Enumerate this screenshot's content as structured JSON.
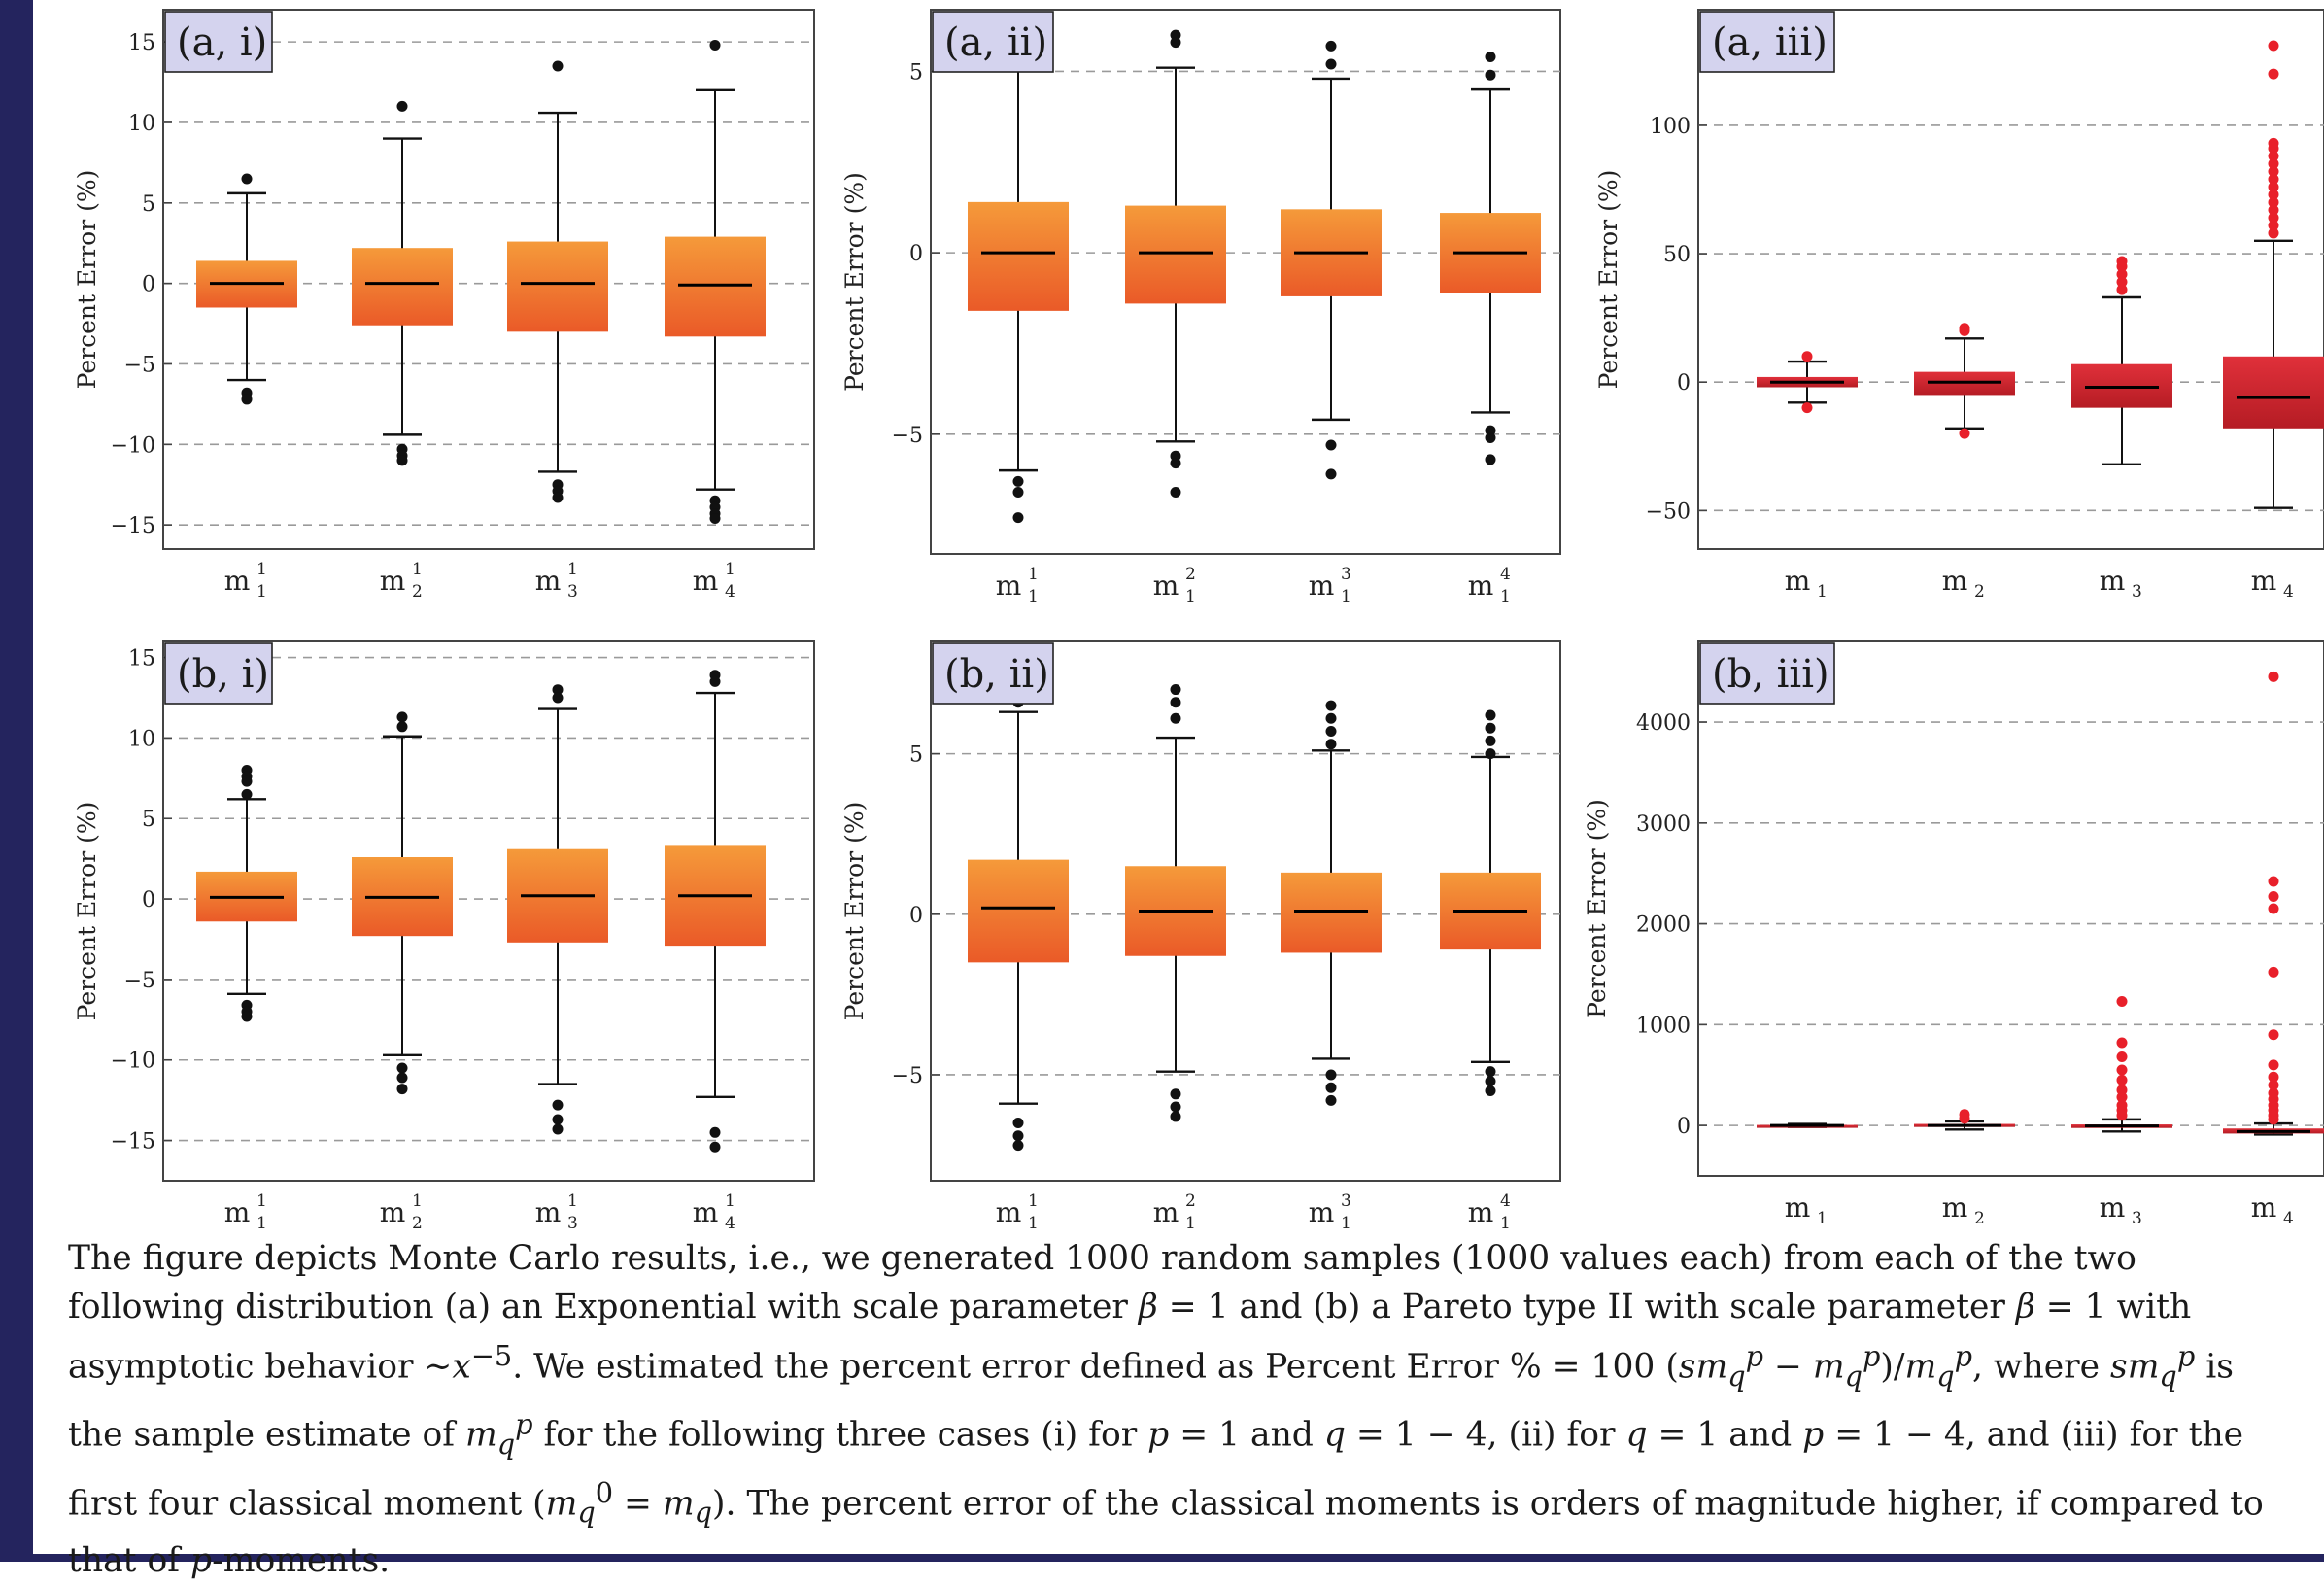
{
  "chart_data": [
    {
      "panel_label": "(a, i)",
      "type": "box",
      "ylabel": "Percent Error (%)",
      "ylim": [
        -16.5,
        17
      ],
      "yticks": [
        15,
        10,
        5,
        0,
        -5,
        -10,
        -15
      ],
      "grid": "dashed horizontal",
      "box_color": "orange",
      "categories": [
        {
          "base": "m",
          "sup": "1",
          "sub": "1"
        },
        {
          "base": "m",
          "sup": "1",
          "sub": "2"
        },
        {
          "base": "m",
          "sup": "1",
          "sub": "3"
        },
        {
          "base": "m",
          "sup": "1",
          "sub": "4"
        }
      ],
      "boxes": [
        {
          "median": 0,
          "q1": -1.5,
          "q3": 1.4,
          "whisker_low": -6.0,
          "whisker_high": 5.6,
          "outliers": [
            6.5,
            -6.8,
            -7.2
          ]
        },
        {
          "median": 0,
          "q1": -2.6,
          "q3": 2.2,
          "whisker_low": -9.4,
          "whisker_high": 9.0,
          "outliers": [
            11.0,
            -10.3,
            -10.7,
            -11.0
          ]
        },
        {
          "median": 0,
          "q1": -3.0,
          "q3": 2.6,
          "whisker_low": -11.7,
          "whisker_high": 10.6,
          "outliers": [
            13.5,
            -12.5,
            -12.9,
            -13.3
          ]
        },
        {
          "median": -0.1,
          "q1": -3.3,
          "q3": 2.9,
          "whisker_low": -12.8,
          "whisker_high": 12.0,
          "outliers": [
            14.8,
            -13.5,
            -13.9,
            -14.3,
            -14.6
          ]
        }
      ]
    },
    {
      "panel_label": "(a, ii)",
      "type": "box",
      "ylabel": "Percent Error (%)",
      "ylim": [
        -8.3,
        6.7
      ],
      "yticks": [
        5,
        0,
        -5
      ],
      "grid": "dashed horizontal",
      "box_color": "orange",
      "categories": [
        {
          "base": "m",
          "sup": "1",
          "sub": "1"
        },
        {
          "base": "m",
          "sup": "2",
          "sub": "1"
        },
        {
          "base": "m",
          "sup": "3",
          "sub": "1"
        },
        {
          "base": "m",
          "sup": "4",
          "sub": "1"
        }
      ],
      "boxes": [
        {
          "median": 0,
          "q1": -1.6,
          "q3": 1.4,
          "whisker_low": -6.0,
          "whisker_high": 5.6,
          "outliers": [
            -6.3,
            -6.6,
            -7.3
          ]
        },
        {
          "median": 0,
          "q1": -1.4,
          "q3": 1.3,
          "whisker_low": -5.2,
          "whisker_high": 5.1,
          "outliers": [
            6.0,
            5.8,
            -5.6,
            -5.8,
            -6.6
          ]
        },
        {
          "median": 0,
          "q1": -1.2,
          "q3": 1.2,
          "whisker_low": -4.6,
          "whisker_high": 4.8,
          "outliers": [
            5.7,
            5.2,
            -5.3,
            -6.1
          ]
        },
        {
          "median": 0,
          "q1": -1.1,
          "q3": 1.1,
          "whisker_low": -4.4,
          "whisker_high": 4.5,
          "outliers": [
            5.4,
            4.9,
            -4.9,
            -5.1,
            -5.7
          ]
        }
      ]
    },
    {
      "panel_label": "(a, iii)",
      "type": "box",
      "ylabel": "Percent Error (%)",
      "ylim": [
        -65,
        145
      ],
      "yticks": [
        100,
        50,
        0,
        -50
      ],
      "grid": "dashed horizontal",
      "box_color": "red",
      "categories": [
        {
          "base": "m",
          "sup": "",
          "sub": "1"
        },
        {
          "base": "m",
          "sup": "",
          "sub": "2"
        },
        {
          "base": "m",
          "sup": "",
          "sub": "3"
        },
        {
          "base": "m",
          "sup": "",
          "sub": "4"
        }
      ],
      "boxes": [
        {
          "median": 0,
          "q1": -2,
          "q3": 2,
          "whisker_low": -8,
          "whisker_high": 8,
          "outliers": [
            10,
            -10
          ]
        },
        {
          "median": 0,
          "q1": -5,
          "q3": 4,
          "whisker_low": -18,
          "whisker_high": 17,
          "outliers": [
            20,
            21,
            -20
          ]
        },
        {
          "median": -2,
          "q1": -10,
          "q3": 7,
          "whisker_low": -32,
          "whisker_high": 33,
          "outliers": [
            36,
            39,
            42,
            45,
            47
          ]
        },
        {
          "median": -6,
          "q1": -18,
          "q3": 10,
          "whisker_low": -49,
          "whisker_high": 55,
          "outliers": [
            58,
            61,
            64,
            67,
            70,
            73,
            76,
            79,
            82,
            85,
            88,
            91,
            93,
            120,
            131
          ]
        }
      ]
    },
    {
      "panel_label": "(b, i)",
      "type": "box",
      "ylabel": "Percent Error (%)",
      "ylim": [
        -17.5,
        16
      ],
      "yticks": [
        15,
        10,
        5,
        0,
        -5,
        -10,
        -15
      ],
      "grid": "dashed horizontal",
      "box_color": "orange",
      "categories": [
        {
          "base": "m",
          "sup": "1",
          "sub": "1"
        },
        {
          "base": "m",
          "sup": "1",
          "sub": "2"
        },
        {
          "base": "m",
          "sup": "1",
          "sub": "3"
        },
        {
          "base": "m",
          "sup": "1",
          "sub": "4"
        }
      ],
      "boxes": [
        {
          "median": 0.1,
          "q1": -1.4,
          "q3": 1.7,
          "whisker_low": -5.9,
          "whisker_high": 6.2,
          "outliers": [
            8.0,
            7.6,
            7.3,
            6.5,
            -6.6,
            -7.0,
            -7.3
          ]
        },
        {
          "median": 0.1,
          "q1": -2.3,
          "q3": 2.6,
          "whisker_low": -9.7,
          "whisker_high": 10.1,
          "outliers": [
            11.3,
            10.7,
            -10.5,
            -11.1,
            -11.8
          ]
        },
        {
          "median": 0.2,
          "q1": -2.7,
          "q3": 3.1,
          "whisker_low": -11.5,
          "whisker_high": 11.8,
          "outliers": [
            13.0,
            12.5,
            -12.8,
            -13.7,
            -14.3
          ]
        },
        {
          "median": 0.2,
          "q1": -2.9,
          "q3": 3.3,
          "whisker_low": -12.3,
          "whisker_high": 12.8,
          "outliers": [
            13.9,
            13.5,
            -14.5,
            -15.4
          ]
        }
      ]
    },
    {
      "panel_label": "(b, ii)",
      "type": "box",
      "ylabel": "Percent Error (%)",
      "ylim": [
        -8.3,
        8.5
      ],
      "yticks": [
        5,
        0,
        -5
      ],
      "grid": "dashed horizontal",
      "box_color": "orange",
      "categories": [
        {
          "base": "m",
          "sup": "1",
          "sub": "1"
        },
        {
          "base": "m",
          "sup": "2",
          "sub": "1"
        },
        {
          "base": "m",
          "sup": "3",
          "sub": "1"
        },
        {
          "base": "m",
          "sup": "4",
          "sub": "1"
        }
      ],
      "boxes": [
        {
          "median": 0.2,
          "q1": -1.5,
          "q3": 1.7,
          "whisker_low": -5.9,
          "whisker_high": 6.3,
          "outliers": [
            6.6,
            -6.5,
            -6.9,
            -7.2
          ]
        },
        {
          "median": 0.1,
          "q1": -1.3,
          "q3": 1.5,
          "whisker_low": -4.9,
          "whisker_high": 5.5,
          "outliers": [
            7.0,
            6.6,
            6.1,
            -5.6,
            -6.0,
            -6.3
          ]
        },
        {
          "median": 0.1,
          "q1": -1.2,
          "q3": 1.3,
          "whisker_low": -4.5,
          "whisker_high": 5.1,
          "outliers": [
            6.5,
            6.1,
            5.7,
            5.3,
            -5.0,
            -5.4,
            -5.8
          ]
        },
        {
          "median": 0.1,
          "q1": -1.1,
          "q3": 1.3,
          "whisker_low": -4.6,
          "whisker_high": 4.9,
          "outliers": [
            6.2,
            5.8,
            5.4,
            5.0,
            -4.9,
            -5.2,
            -5.5
          ]
        }
      ]
    },
    {
      "panel_label": "(b, iii)",
      "type": "box",
      "ylabel": "Percent Error (%)",
      "ylim": [
        -500,
        4800
      ],
      "yticks": [
        4000,
        3000,
        2000,
        1000,
        0
      ],
      "grid": "dashed horizontal",
      "box_color": "red",
      "categories": [
        {
          "base": "m",
          "sup": "",
          "sub": "1"
        },
        {
          "base": "m",
          "sup": "",
          "sub": "2"
        },
        {
          "base": "m",
          "sup": "",
          "sub": "3"
        },
        {
          "base": "m",
          "sup": "",
          "sub": "4"
        }
      ],
      "boxes": [
        {
          "median": 0,
          "q1": -5,
          "q3": 5,
          "whisker_low": -15,
          "whisker_high": 15,
          "outliers": []
        },
        {
          "median": 0,
          "q1": -15,
          "q3": 15,
          "whisker_low": -40,
          "whisker_high": 40,
          "outliers": [
            70,
            110
          ]
        },
        {
          "median": -5,
          "q1": -25,
          "q3": 10,
          "whisker_low": -60,
          "whisker_high": 60,
          "outliers": [
            100,
            150,
            200,
            280,
            350,
            450,
            550,
            680,
            820,
            1230
          ]
        },
        {
          "median": -60,
          "q1": -80,
          "q3": -30,
          "whisker_low": -90,
          "whisker_high": 20,
          "outliers": [
            60,
            100,
            150,
            200,
            260,
            320,
            400,
            480,
            600,
            900,
            1520,
            2150,
            2270,
            2420,
            4450
          ]
        }
      ]
    }
  ],
  "caption": {
    "line1": "The figure depicts Monte Carlo results, i.e., we generated 1000 random samples (1000 values each) from each of the two",
    "line2a": "following distribution (a) an Exponential with scale parameter ",
    "beta": "β",
    "eq1": " = 1",
    "line2b": " and (b) a Pareto type II with scale parameter ",
    "line2c": " with",
    "line3a": "asymptotic behavior ~",
    "x": "x",
    "exp": "−5",
    "line3b": ".  We estimated the percent error defined as Percent Error % = 100 (",
    "sm": "sm",
    "m": "m",
    "p": "p",
    "q": "q",
    "minus": " − ",
    "line3c": ")/",
    "line3d": ", where ",
    "line3e": " is",
    "line4a": "the sample estimate of  ",
    "line4b": " for the following three cases (i) for ",
    "p_eq": "p",
    "line4c": " = 1 and ",
    "q_eq": "q",
    "line4d": " = 1 − 4, (ii) for ",
    "line4e": " = 1 and ",
    "line4f": " = 1 − 4, and (iii) for  the",
    "line5a": "first four classical moment (",
    "zero": "0",
    "line5b": " = ",
    "line5c": "). The percent error of the classical moments is orders of magnitude higher, if compared to",
    "line6a": "that of ",
    "line6b": "-moments."
  },
  "colors": {
    "frame": "#24245e",
    "orange_top": "#f59a3a",
    "orange_bottom": "#ea5a28",
    "red_top": "#e0303a",
    "red_bottom": "#b51c24",
    "median": "#000000",
    "outlier_black": "#111111",
    "outlier_red": "#e8202a",
    "label_bg": "#d4d3ee",
    "grid": "#9a9a9a"
  }
}
